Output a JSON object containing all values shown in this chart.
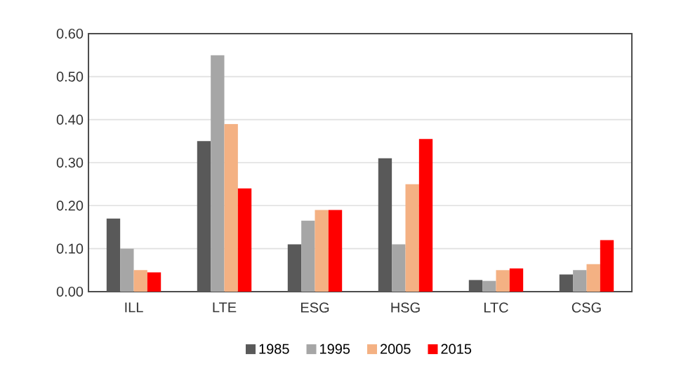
{
  "chart_data": {
    "type": "bar",
    "categories": [
      "ILL",
      "LTE",
      "ESG",
      "HSG",
      "LTC",
      "CSG"
    ],
    "series": [
      {
        "name": "1985",
        "color": "#595959",
        "values": [
          0.17,
          0.35,
          0.11,
          0.31,
          0.027,
          0.04
        ]
      },
      {
        "name": "1995",
        "color": "#a6a6a6",
        "values": [
          0.1,
          0.55,
          0.165,
          0.11,
          0.025,
          0.05
        ]
      },
      {
        "name": "2005",
        "color": "#f4b183",
        "values": [
          0.05,
          0.39,
          0.19,
          0.25,
          0.05,
          0.064
        ]
      },
      {
        "name": "2015",
        "color": "#ff0000",
        "values": [
          0.045,
          0.24,
          0.19,
          0.355,
          0.054,
          0.12
        ]
      }
    ],
    "ylim": [
      0,
      0.6
    ],
    "yticks": [
      {
        "value": 0,
        "label": "0.00"
      },
      {
        "value": 0.1,
        "label": "0.10"
      },
      {
        "value": 0.2,
        "label": "0.20"
      },
      {
        "value": 0.3,
        "label": "0.30"
      },
      {
        "value": 0.4,
        "label": "0.40"
      },
      {
        "value": 0.5,
        "label": "0.50"
      },
      {
        "value": 0.6,
        "label": "0.60"
      }
    ],
    "grid": "y",
    "legend": "bottom"
  }
}
